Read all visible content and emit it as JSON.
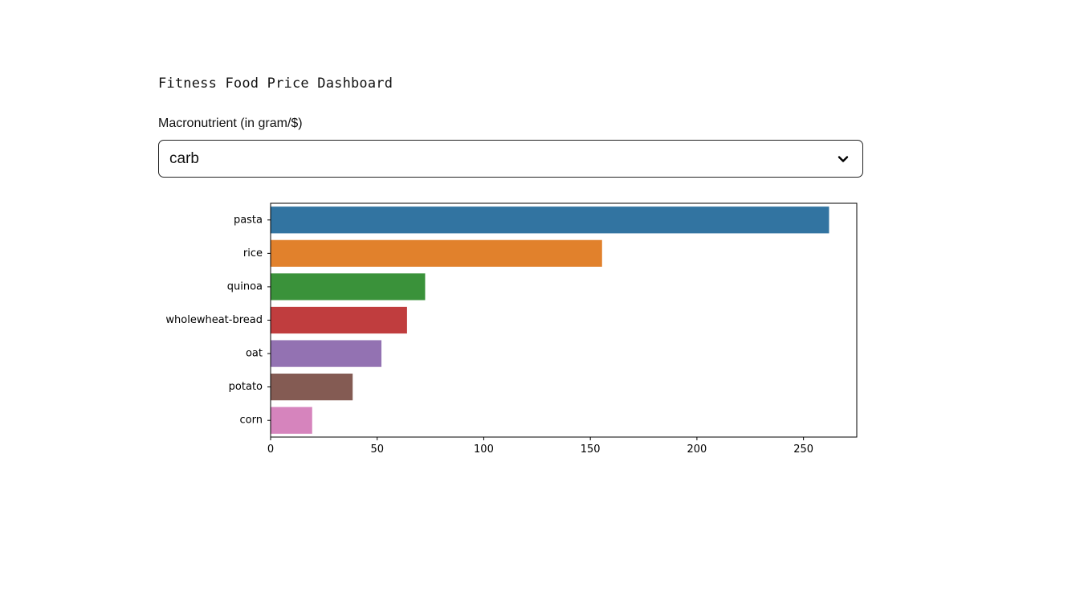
{
  "header": {
    "title": "Fitness Food Price Dashboard"
  },
  "filter": {
    "label": "Macronutrient (in gram/$)",
    "selected": "carb",
    "chevron_icon": "chevron-down-icon"
  },
  "chart_data": {
    "type": "bar",
    "orientation": "horizontal",
    "title": "",
    "xlabel": "",
    "ylabel": "",
    "categories": [
      "pasta",
      "rice",
      "quinoa",
      "wholewheat-bread",
      "oat",
      "potato",
      "corn"
    ],
    "values": [
      262,
      155.5,
      72.5,
      64,
      52,
      38.5,
      19.5
    ],
    "colors": [
      "#3274a1",
      "#e1812c",
      "#3a923a",
      "#c03d3e",
      "#9372b2",
      "#845b53",
      "#d684bd"
    ],
    "xlim": [
      0,
      275
    ],
    "xticks": [
      0,
      50,
      100,
      150,
      200,
      250
    ],
    "grid": false,
    "legend": "none"
  }
}
